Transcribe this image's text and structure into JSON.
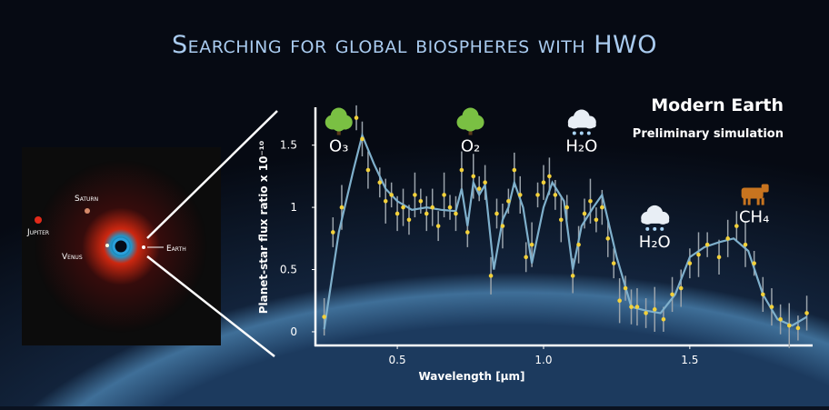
{
  "chart_data": {
    "type": "line",
    "title": "Searching for global biospheres with HWO",
    "subtitle": "Modern Earth",
    "note": "Preliminary simulation",
    "x_label": "Wavelength [µm]",
    "y_label": "Planet-star flux ratio x 10⁻¹⁰",
    "xlim": [
      0.22,
      1.92
    ],
    "ylim": [
      -0.11,
      1.79
    ],
    "xticks": [
      0.5,
      {
        "value": 1,
        "label": "1.0"
      },
      1.5
    ],
    "yticks": [
      0,
      0.5,
      1,
      1.5
    ],
    "grid": false,
    "annotations": [
      {
        "text": "O₃",
        "x": 0.3,
        "y": 1.45,
        "icon": "tree"
      },
      {
        "text": "O₂",
        "x": 0.75,
        "y": 1.45,
        "icon": "tree"
      },
      {
        "text": "H₂O",
        "x": 1.13,
        "y": 1.45,
        "icon": "cloud"
      },
      {
        "text": "H₂O",
        "x": 1.38,
        "y": 0.68,
        "icon": "cloud"
      },
      {
        "text": "CH₄",
        "x": 1.72,
        "y": 0.88,
        "icon": "cow"
      }
    ],
    "model": {
      "color": "#7fb0cc",
      "x": [
        0.25,
        0.3,
        0.35,
        0.38,
        0.42,
        0.46,
        0.5,
        0.55,
        0.6,
        0.65,
        0.7,
        0.72,
        0.74,
        0.76,
        0.78,
        0.8,
        0.83,
        0.86,
        0.88,
        0.9,
        0.93,
        0.96,
        1.0,
        1.03,
        1.07,
        1.1,
        1.13,
        1.17,
        1.2,
        1.25,
        1.3,
        1.35,
        1.4,
        1.45,
        1.5,
        1.55,
        1.6,
        1.65,
        1.7,
        1.75,
        1.8,
        1.85,
        1.9
      ],
      "values": [
        0.02,
        0.8,
        1.3,
        1.58,
        1.35,
        1.15,
        1.05,
        0.98,
        1.0,
        0.98,
        0.97,
        1.15,
        0.85,
        1.2,
        1.1,
        1.18,
        0.5,
        0.9,
        1.0,
        1.2,
        1.0,
        0.55,
        1.0,
        1.2,
        1.05,
        0.5,
        0.85,
        1.0,
        1.1,
        0.6,
        0.2,
        0.17,
        0.15,
        0.3,
        0.6,
        0.68,
        0.72,
        0.75,
        0.65,
        0.3,
        0.1,
        0.05,
        0.12
      ]
    },
    "points": {
      "color": "#f3d13a",
      "error_color": "#9aa3ab",
      "x": [
        0.25,
        0.28,
        0.31,
        0.36,
        0.38,
        0.4,
        0.44,
        0.46,
        0.48,
        0.5,
        0.52,
        0.54,
        0.56,
        0.58,
        0.6,
        0.62,
        0.64,
        0.66,
        0.68,
        0.7,
        0.72,
        0.74,
        0.76,
        0.78,
        0.8,
        0.82,
        0.84,
        0.86,
        0.88,
        0.9,
        0.92,
        0.94,
        0.96,
        0.98,
        1.0,
        1.02,
        1.04,
        1.06,
        1.08,
        1.1,
        1.12,
        1.14,
        1.16,
        1.18,
        1.2,
        1.22,
        1.24,
        1.26,
        1.28,
        1.3,
        1.32,
        1.35,
        1.38,
        1.41,
        1.44,
        1.47,
        1.5,
        1.53,
        1.56,
        1.6,
        1.63,
        1.66,
        1.69,
        1.72,
        1.75,
        1.78,
        1.81,
        1.84,
        1.87,
        1.9
      ],
      "values": [
        0.12,
        0.8,
        1.0,
        1.72,
        1.55,
        1.3,
        1.2,
        1.05,
        1.1,
        0.95,
        1.0,
        0.9,
        1.1,
        1.05,
        0.95,
        1.0,
        0.85,
        1.1,
        1.0,
        0.95,
        1.3,
        0.8,
        1.25,
        1.15,
        1.2,
        0.45,
        0.95,
        0.85,
        1.05,
        1.3,
        1.1,
        0.6,
        0.7,
        1.1,
        1.2,
        1.25,
        1.1,
        0.9,
        1.0,
        0.45,
        0.7,
        0.95,
        1.05,
        0.9,
        1.0,
        0.75,
        0.55,
        0.25,
        0.35,
        0.2,
        0.2,
        0.15,
        0.18,
        0.1,
        0.3,
        0.35,
        0.55,
        0.62,
        0.7,
        0.6,
        0.75,
        0.85,
        0.7,
        0.55,
        0.3,
        0.2,
        0.1,
        0.05,
        0.03,
        0.15
      ],
      "errors": [
        0.15,
        0.12,
        0.18,
        0.1,
        0.14,
        0.15,
        0.12,
        0.18,
        0.1,
        0.14,
        0.15,
        0.12,
        0.18,
        0.1,
        0.14,
        0.15,
        0.12,
        0.18,
        0.1,
        0.14,
        0.15,
        0.12,
        0.18,
        0.1,
        0.14,
        0.15,
        0.12,
        0.18,
        0.1,
        0.14,
        0.15,
        0.12,
        0.18,
        0.1,
        0.14,
        0.15,
        0.12,
        0.18,
        0.1,
        0.14,
        0.15,
        0.12,
        0.18,
        0.1,
        0.14,
        0.15,
        0.12,
        0.18,
        0.1,
        0.14,
        0.15,
        0.12,
        0.18,
        0.1,
        0.14,
        0.15,
        0.12,
        0.18,
        0.1,
        0.14,
        0.15,
        0.12,
        0.18,
        0.1,
        0.14,
        0.15,
        0.12,
        0.18,
        0.1,
        0.14
      ]
    }
  },
  "inset": {
    "labels": [
      "Jupiter",
      "Saturn",
      "Venus",
      "Earth"
    ]
  }
}
